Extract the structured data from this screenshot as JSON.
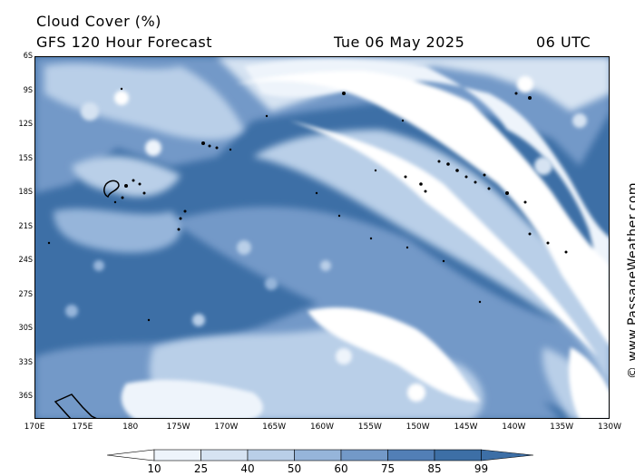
{
  "header": {
    "title": "Cloud Cover (%)",
    "subtitle": "GFS 120 Hour Forecast",
    "date": "Tue 06 May 2025",
    "time": "06 UTC"
  },
  "copyright": "© www.PassageWeather.com",
  "axes": {
    "lat_labels": [
      "6S",
      "9S",
      "12S",
      "15S",
      "18S",
      "21S",
      "24S",
      "27S",
      "30S",
      "33S",
      "36S"
    ],
    "lon_labels": [
      "170E",
      "175E",
      "180",
      "175W",
      "170W",
      "165W",
      "160W",
      "155W",
      "150W",
      "145W",
      "140W",
      "135W",
      "130W"
    ]
  },
  "legend": {
    "values": [
      "10",
      "25",
      "40",
      "50",
      "60",
      "75",
      "85",
      "99"
    ],
    "colors": [
      "#ffffff",
      "#eef4fb",
      "#d6e3f2",
      "#b9cfe8",
      "#96b5da",
      "#7399c8",
      "#527fb6",
      "#3d6fa6"
    ]
  }
}
